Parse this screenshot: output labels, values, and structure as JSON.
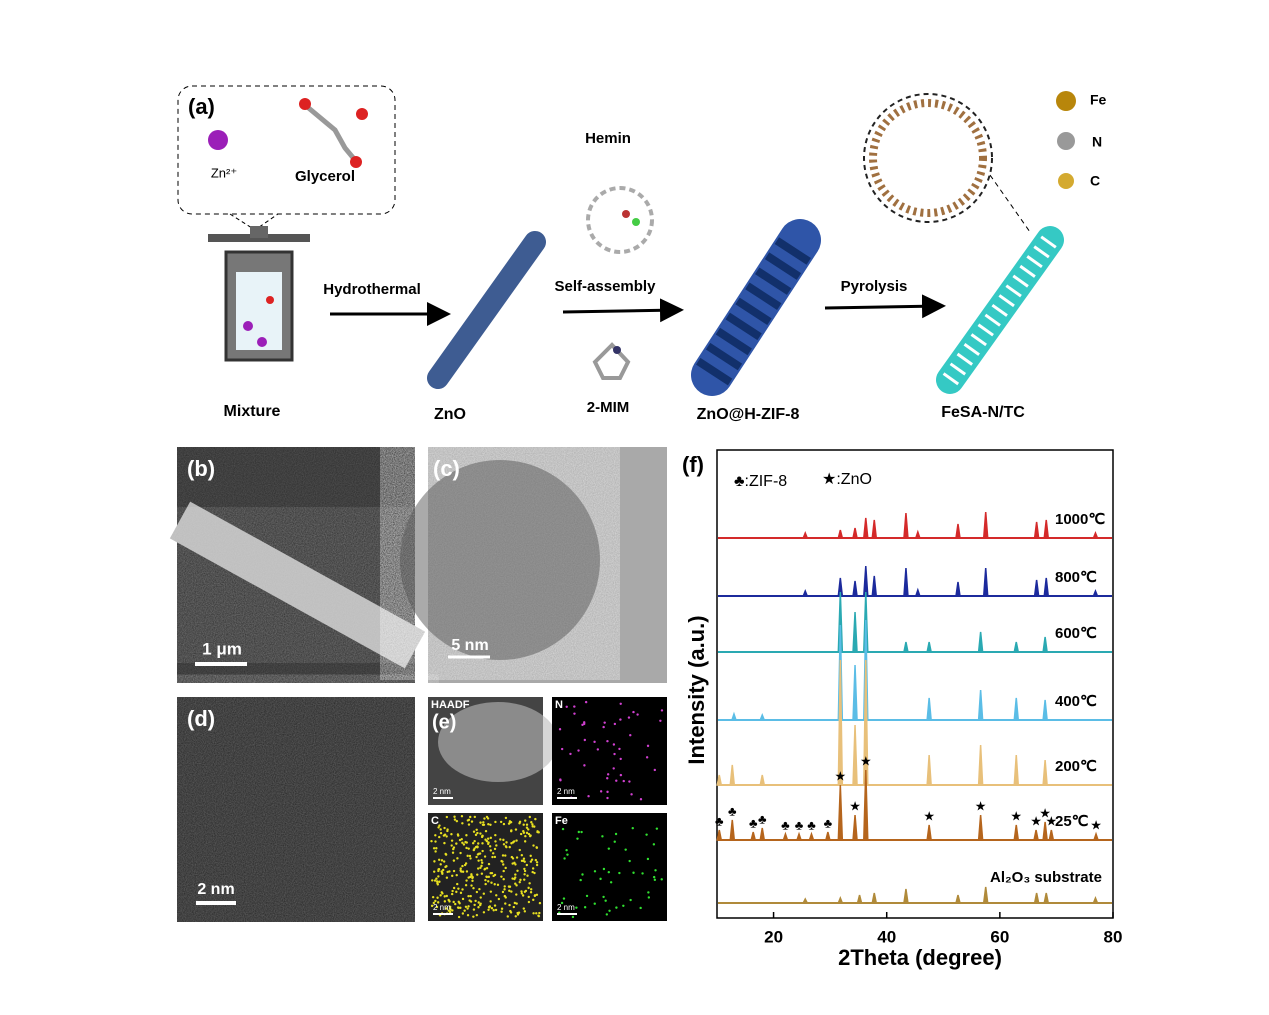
{
  "schematic": {
    "panel": "(a)",
    "zn": "Zn²⁺",
    "glycerol": "Glycerol",
    "mixture": "Mixture",
    "hydrothermal": "Hydrothermal",
    "zno": "ZnO",
    "hemin": "Hemin",
    "self_assembly": "Self-assembly",
    "mim": "2-MIM",
    "zif": "ZnO@H-ZIF-8",
    "pyrolysis": "Pyrolysis",
    "product": "FeSA-N/TC",
    "legend": [
      "Fe",
      "N",
      "C"
    ]
  },
  "micrographs": {
    "b": {
      "panel": "(b)",
      "scale": "1 μm"
    },
    "c": {
      "panel": "(c)",
      "scale": "5 nm"
    },
    "d": {
      "panel": "(d)",
      "scale": "2 nm"
    },
    "e": {
      "panel": "(e)",
      "maps": [
        {
          "label": "HAADF",
          "scale": "2 nm"
        },
        {
          "label": "N",
          "scale": "2 nm"
        },
        {
          "label": "C",
          "scale": "2 nm"
        },
        {
          "label": "Fe",
          "scale": "2 nm"
        }
      ]
    }
  },
  "xrd": {
    "type": "line",
    "panel": "(f)",
    "xlabel": "2Theta (degree)",
    "ylabel": "Intensity (a.u.)",
    "xlim": [
      10,
      80
    ],
    "xticks": [
      20,
      40,
      60,
      80
    ],
    "legend": [
      "♣:ZIF-8",
      "★:ZnO"
    ],
    "series": [
      {
        "name": "1000℃",
        "color": "#d42a2a",
        "x": [
          25.6,
          31.8,
          34.4,
          36.3,
          37.8,
          43.4,
          45.5,
          52.6,
          57.5,
          66.5,
          68.2,
          76.9
        ],
        "values": [
          5,
          8,
          10,
          20,
          18,
          25,
          6,
          14,
          26,
          16,
          18,
          5
        ]
      },
      {
        "name": "800℃",
        "color": "#1c2a9c",
        "x": [
          25.6,
          31.8,
          34.4,
          36.3,
          37.8,
          43.4,
          45.5,
          52.6,
          57.5,
          66.5,
          68.2,
          76.9
        ],
        "values": [
          5,
          18,
          15,
          30,
          20,
          28,
          6,
          14,
          28,
          16,
          18,
          5
        ]
      },
      {
        "name": "600℃",
        "color": "#2aa9b2",
        "x": [
          31.8,
          34.4,
          36.3,
          43.4,
          47.5,
          56.6,
          62.9,
          68.0
        ],
        "values": [
          60,
          40,
          60,
          10,
          10,
          20,
          10,
          15
        ]
      },
      {
        "name": "400℃",
        "color": "#5bbde6",
        "x": [
          13,
          18,
          31.8,
          34.4,
          36.3,
          47.5,
          56.6,
          62.9,
          68.0
        ],
        "values": [
          6,
          5,
          95,
          55,
          100,
          22,
          30,
          22,
          20
        ]
      },
      {
        "name": "200℃",
        "color": "#e8c07a",
        "x": [
          10.4,
          12.7,
          18,
          31.8,
          34.4,
          36.3,
          47.5,
          56.6,
          62.9,
          68.0
        ],
        "values": [
          10,
          20,
          10,
          125,
          60,
          125,
          30,
          40,
          30,
          25
        ]
      },
      {
        "name": "25℃",
        "color": "#b5651d",
        "x": [
          10.4,
          12.7,
          16.4,
          18,
          22.1,
          24.5,
          26.7,
          29.6,
          31.8,
          34.4,
          36.3,
          47.5,
          56.6,
          62.9,
          66.4,
          68.0,
          69.1,
          77
        ],
        "values": [
          10,
          20,
          8,
          12,
          6,
          6,
          6,
          8,
          55,
          25,
          70,
          15,
          25,
          15,
          10,
          18,
          10,
          6
        ],
        "markers": [
          "♣",
          "♣",
          "♣",
          "♣",
          "♣",
          "♣",
          "♣",
          "♣",
          "★",
          "★",
          "★",
          "★",
          "★",
          "★",
          "★",
          "★",
          "★",
          "★"
        ]
      },
      {
        "name": "Al₂O₃ substrate",
        "color": "#b08a3a",
        "x": [
          25.6,
          31.8,
          35.2,
          37.8,
          43.4,
          52.6,
          57.5,
          66.5,
          68.2,
          76.9
        ],
        "values": [
          4,
          5,
          8,
          10,
          14,
          8,
          16,
          10,
          10,
          5
        ]
      }
    ]
  }
}
